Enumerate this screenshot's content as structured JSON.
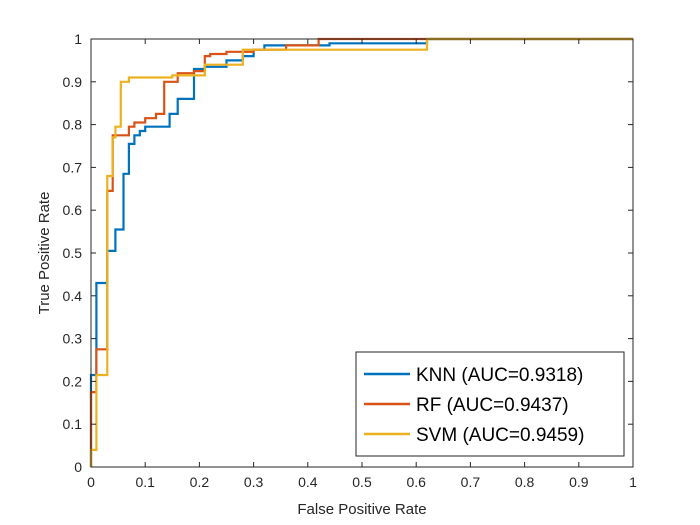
{
  "chart_data": {
    "type": "line",
    "title": "",
    "xlabel": "False Positive Rate",
    "ylabel": "True Positive Rate",
    "xlim": [
      0,
      1
    ],
    "ylim": [
      0,
      1
    ],
    "xticks": [
      "0",
      "0.1",
      "0.2",
      "0.3",
      "0.4",
      "0.5",
      "0.6",
      "0.7",
      "0.8",
      "0.9",
      "1"
    ],
    "yticks": [
      "0",
      "0.1",
      "0.2",
      "0.3",
      "0.4",
      "0.5",
      "0.6",
      "0.7",
      "0.8",
      "0.9",
      "1"
    ],
    "grid": false,
    "legend_position": "bottom-right",
    "series": [
      {
        "name": "KNN (AUC=0.9318)",
        "color": "#0072BD",
        "x": [
          0,
          0,
          0.01,
          0.01,
          0.03,
          0.03,
          0.045,
          0.045,
          0.06,
          0.06,
          0.07,
          0.07,
          0.08,
          0.08,
          0.09,
          0.09,
          0.1,
          0.1,
          0.145,
          0.145,
          0.16,
          0.16,
          0.19,
          0.19,
          0.21,
          0.21,
          0.25,
          0.25,
          0.28,
          0.28,
          0.3,
          0.3,
          0.32,
          0.32,
          0.44,
          0.44,
          0.62,
          0.62,
          1
        ],
        "y": [
          0,
          0.215,
          0.215,
          0.43,
          0.43,
          0.505,
          0.505,
          0.555,
          0.555,
          0.685,
          0.685,
          0.755,
          0.755,
          0.775,
          0.775,
          0.785,
          0.785,
          0.795,
          0.795,
          0.825,
          0.825,
          0.86,
          0.86,
          0.93,
          0.93,
          0.935,
          0.935,
          0.95,
          0.95,
          0.96,
          0.96,
          0.975,
          0.975,
          0.985,
          0.985,
          0.99,
          0.99,
          1,
          1
        ]
      },
      {
        "name": "RF (AUC=0.9437)",
        "color": "#D95319",
        "x": [
          0,
          0,
          0.01,
          0.01,
          0.03,
          0.03,
          0.04,
          0.04,
          0.07,
          0.07,
          0.08,
          0.08,
          0.1,
          0.1,
          0.12,
          0.12,
          0.135,
          0.135,
          0.16,
          0.16,
          0.19,
          0.19,
          0.21,
          0.21,
          0.22,
          0.22,
          0.25,
          0.25,
          0.3,
          0.3,
          0.36,
          0.36,
          0.42,
          0.42,
          0.62,
          0.62,
          1
        ],
        "y": [
          0,
          0.175,
          0.175,
          0.275,
          0.275,
          0.645,
          0.645,
          0.775,
          0.775,
          0.795,
          0.795,
          0.805,
          0.805,
          0.815,
          0.815,
          0.825,
          0.825,
          0.9,
          0.9,
          0.92,
          0.92,
          0.925,
          0.925,
          0.96,
          0.96,
          0.965,
          0.965,
          0.97,
          0.97,
          0.975,
          0.975,
          0.985,
          0.985,
          1,
          1,
          1,
          1
        ]
      },
      {
        "name": "SVM (AUC=0.9459)",
        "color": "#EDB120",
        "x": [
          0,
          0,
          0.01,
          0.01,
          0.015,
          0.015,
          0.03,
          0.03,
          0.04,
          0.04,
          0.045,
          0.045,
          0.055,
          0.055,
          0.07,
          0.07,
          0.15,
          0.15,
          0.21,
          0.21,
          0.28,
          0.28,
          0.62,
          0.62,
          1
        ],
        "y": [
          0,
          0.04,
          0.04,
          0.215,
          0.215,
          0.215,
          0.215,
          0.68,
          0.68,
          0.77,
          0.77,
          0.795,
          0.795,
          0.9,
          0.9,
          0.91,
          0.91,
          0.915,
          0.915,
          0.94,
          0.94,
          0.975,
          0.975,
          1,
          1
        ]
      }
    ]
  }
}
